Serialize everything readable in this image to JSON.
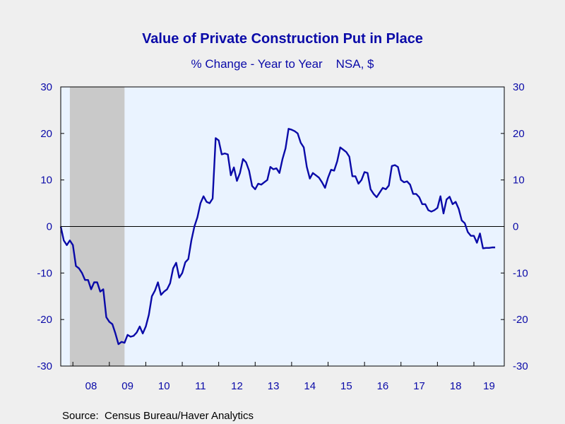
{
  "chart_data": {
    "type": "line",
    "title": "Value of Private Construction Put in Place",
    "subtitle": "% Change - Year to Year    NSA, $",
    "source": "Source:  Census Bureau/Haver Analytics",
    "xlabel": "",
    "ylabel": "",
    "ylim": [
      -30,
      30
    ],
    "yticks": [
      "30",
      "20",
      "10",
      "0",
      "-10",
      "-20",
      "-30"
    ],
    "year_labels": [
      "08",
      "09",
      "10",
      "11",
      "12",
      "13",
      "14",
      "15",
      "16",
      "17",
      "18",
      "19"
    ],
    "x_start": "2007-09",
    "x_end": "2019-11",
    "recession": {
      "start": "2007-12",
      "end": "2009-06"
    },
    "grid": false,
    "zero_line": true,
    "colors": {
      "line": "#0a0aa8",
      "plot_background": "#eaf3ff",
      "recession_shade": "#c9c9c9",
      "text": "#0a0aa8",
      "page_background": "#efefef"
    },
    "series": [
      {
        "x": [
          "2007-09",
          "2007-10",
          "2007-11",
          "2007-12",
          "2008-01",
          "2008-02",
          "2008-03",
          "2008-04",
          "2008-05",
          "2008-06",
          "2008-07",
          "2008-08",
          "2008-09",
          "2008-10",
          "2008-11",
          "2008-12",
          "2009-01",
          "2009-02",
          "2009-03",
          "2009-04",
          "2009-05",
          "2009-06",
          "2009-07",
          "2009-08",
          "2009-09",
          "2009-10",
          "2009-11",
          "2009-12",
          "2010-01",
          "2010-02",
          "2010-03",
          "2010-04",
          "2010-05",
          "2010-06",
          "2010-07",
          "2010-08",
          "2010-09",
          "2010-10",
          "2010-11",
          "2010-12",
          "2011-01",
          "2011-02",
          "2011-03",
          "2011-04",
          "2011-05",
          "2011-06",
          "2011-07",
          "2011-08",
          "2011-09",
          "2011-10",
          "2011-11",
          "2011-12",
          "2012-01",
          "2012-02",
          "2012-03",
          "2012-04",
          "2012-05",
          "2012-06",
          "2012-07",
          "2012-08",
          "2012-09",
          "2012-10",
          "2012-11",
          "2012-12",
          "2013-01",
          "2013-02",
          "2013-03",
          "2013-04",
          "2013-05",
          "2013-06",
          "2013-07",
          "2013-08",
          "2013-09",
          "2013-10",
          "2013-11",
          "2013-12",
          "2014-01",
          "2014-02",
          "2014-03",
          "2014-04",
          "2014-05",
          "2014-06",
          "2014-07",
          "2014-08",
          "2014-09",
          "2014-10",
          "2014-11",
          "2014-12",
          "2015-01",
          "2015-02",
          "2015-03",
          "2015-04",
          "2015-05",
          "2015-06",
          "2015-07",
          "2015-08",
          "2015-09",
          "2015-10",
          "2015-11",
          "2015-12",
          "2016-01",
          "2016-02",
          "2016-03",
          "2016-04",
          "2016-05",
          "2016-06",
          "2016-07",
          "2016-08",
          "2016-09",
          "2016-10",
          "2016-11",
          "2016-12",
          "2017-01",
          "2017-02",
          "2017-03",
          "2017-04",
          "2017-05",
          "2017-06",
          "2017-07",
          "2017-08",
          "2017-09",
          "2017-10",
          "2017-11",
          "2017-12",
          "2018-01",
          "2018-02",
          "2018-03",
          "2018-04",
          "2018-05",
          "2018-06",
          "2018-07",
          "2018-08",
          "2018-09",
          "2018-10",
          "2018-11",
          "2018-12",
          "2019-01",
          "2019-02",
          "2019-03",
          "2019-04",
          "2019-05",
          "2019-06",
          "2019-07",
          "2019-08"
        ],
        "values": [
          0.0,
          -3.0,
          -4.0,
          -3.0,
          -4.0,
          -8.5,
          -9.0,
          -10.0,
          -11.5,
          -11.5,
          -13.5,
          -12.0,
          -12.0,
          -14.0,
          -13.5,
          -19.5,
          -20.5,
          -21.0,
          -23.0,
          -25.3,
          -24.8,
          -25.0,
          -23.3,
          -23.7,
          -23.5,
          -22.8,
          -21.5,
          -23.0,
          -21.5,
          -19.0,
          -15.0,
          -13.8,
          -12.0,
          -14.7,
          -14.0,
          -13.5,
          -12.2,
          -9.0,
          -7.8,
          -11.0,
          -10.0,
          -7.7,
          -7.0,
          -3.0,
          0.0,
          2.0,
          5.0,
          6.5,
          5.3,
          5.0,
          6.0,
          19.0,
          18.5,
          15.5,
          15.7,
          15.5,
          11.0,
          12.7,
          9.8,
          11.5,
          14.5,
          13.8,
          12.0,
          8.7,
          8.0,
          9.2,
          9.0,
          9.5,
          10.0,
          12.8,
          12.3,
          12.5,
          11.5,
          14.5,
          16.8,
          21.0,
          20.8,
          20.5,
          20.0,
          18.0,
          17.0,
          12.8,
          10.3,
          11.5,
          11.0,
          10.5,
          9.5,
          8.3,
          10.5,
          12.2,
          12.0,
          14.0,
          17.0,
          16.5,
          16.0,
          15.0,
          10.8,
          10.8,
          9.2,
          10.0,
          11.7,
          11.5,
          8.0,
          7.0,
          6.3,
          7.3,
          8.3,
          8.0,
          8.8,
          13.0,
          13.2,
          12.8,
          10.0,
          9.5,
          9.7,
          9.0,
          7.0,
          7.0,
          6.3,
          4.8,
          4.8,
          3.5,
          3.2,
          3.5,
          4.0,
          6.5,
          2.8,
          5.8,
          6.4,
          4.8,
          5.3,
          3.8,
          1.3,
          0.7,
          -1.2,
          -2.0,
          -2.0,
          -3.5,
          -1.5,
          -4.7,
          -4.6,
          -4.6,
          -4.5,
          -4.5
        ]
      }
    ]
  }
}
